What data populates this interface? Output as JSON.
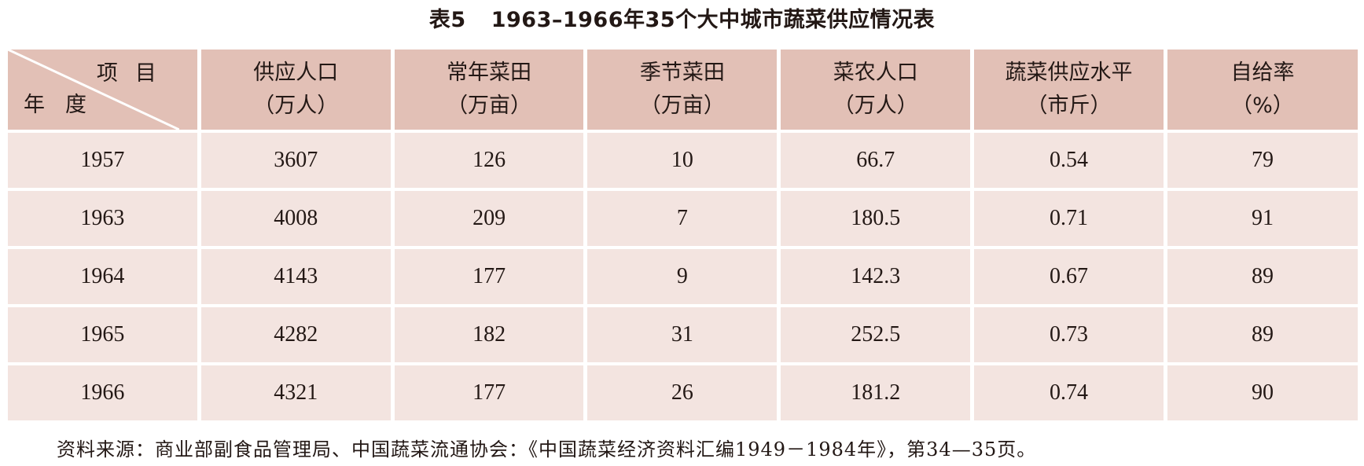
{
  "table": {
    "title_label": "表5",
    "title_text": "1963–1966年35个大中城市蔬菜供应情况表",
    "corner": {
      "item_label": "项目",
      "year_label": "年度"
    },
    "columns": [
      {
        "name": "供应人口",
        "unit": "（万人）"
      },
      {
        "name": "常年菜田",
        "unit": "（万亩）"
      },
      {
        "name": "季节菜田",
        "unit": "（万亩）"
      },
      {
        "name": "菜农人口",
        "unit": "（万人）"
      },
      {
        "name": "蔬菜供应水平",
        "unit": "（市斤）"
      },
      {
        "name": "自给率",
        "unit": "（%）"
      }
    ],
    "rows": [
      {
        "year": "1957",
        "values": [
          "3607",
          "126",
          "10",
          "66.7",
          "0.54",
          "79"
        ]
      },
      {
        "year": "1963",
        "values": [
          "4008",
          "209",
          "7",
          "180.5",
          "0.71",
          "91"
        ]
      },
      {
        "year": "1964",
        "values": [
          "4143",
          "177",
          "9",
          "142.3",
          "0.67",
          "89"
        ]
      },
      {
        "year": "1965",
        "values": [
          "4282",
          "182",
          "31",
          "252.5",
          "0.73",
          "89"
        ]
      },
      {
        "year": "1966",
        "values": [
          "4321",
          "177",
          "26",
          "181.2",
          "0.74",
          "90"
        ]
      }
    ],
    "source_note": "资料来源：商业部副食品管理局、中国蔬菜流通协会：《中国蔬菜经济资料汇编1949－1984年》，第34—35页。"
  },
  "colors": {
    "header_bg": "#e2c0b6",
    "cell_bg": "#f3e4e0",
    "text": "#231815"
  }
}
